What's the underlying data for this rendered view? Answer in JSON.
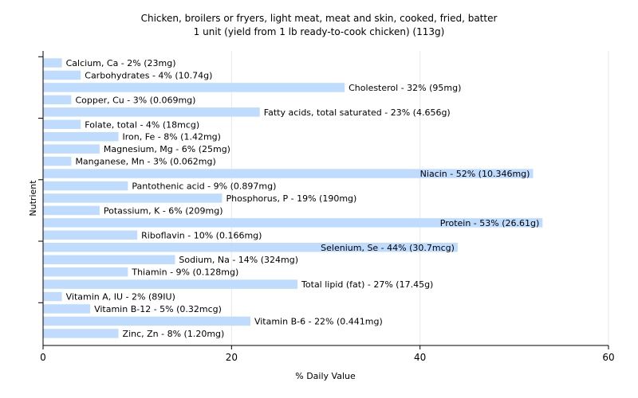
{
  "chart_data": {
    "type": "bar",
    "orientation": "horizontal",
    "title": "Chicken, broilers or fryers, light meat, meat and skin, cooked, fried, batter",
    "subtitle": "1 unit (yield from 1 lb ready-to-cook chicken) (113g)",
    "xlabel": "% Daily Value",
    "ylabel": "Nutrient",
    "xlim": [
      0,
      60
    ],
    "xticks": [
      0,
      20,
      40,
      60
    ],
    "grid": true,
    "bar_color": "#bfdcff",
    "categories": [
      "Calcium, Ca",
      "Carbohydrates",
      "Cholesterol",
      "Copper, Cu",
      "Fatty acids, total saturated",
      "Folate, total",
      "Iron, Fe",
      "Magnesium, Mg",
      "Manganese, Mn",
      "Niacin",
      "Pantothenic acid",
      "Phosphorus, P",
      "Potassium, K",
      "Protein",
      "Riboflavin",
      "Selenium, Se",
      "Sodium, Na",
      "Thiamin",
      "Total lipid (fat)",
      "Vitamin A, IU",
      "Vitamin B-12",
      "Vitamin B-6",
      "Zinc, Zn"
    ],
    "values": [
      2,
      4,
      32,
      3,
      23,
      4,
      8,
      6,
      3,
      52,
      9,
      19,
      6,
      53,
      10,
      44,
      14,
      9,
      27,
      2,
      5,
      22,
      8
    ],
    "labels": [
      "Calcium, Ca - 2% (23mg)",
      "Carbohydrates - 4% (10.74g)",
      "Cholesterol - 32% (95mg)",
      "Copper, Cu - 3% (0.069mg)",
      "Fatty acids, total saturated - 23% (4.656g)",
      "Folate, total - 4% (18mcg)",
      "Iron, Fe - 8% (1.42mg)",
      "Magnesium, Mg - 6% (25mg)",
      "Manganese, Mn - 3% (0.062mg)",
      "Niacin - 52% (10.346mg)",
      "Pantothenic acid - 9% (0.897mg)",
      "Phosphorus, P - 19% (190mg)",
      "Potassium, K - 6% (209mg)",
      "Protein - 53% (26.61g)",
      "Riboflavin - 10% (0.166mg)",
      "Selenium, Se - 44% (30.7mcg)",
      "Sodium, Na - 14% (324mg)",
      "Thiamin - 9% (0.128mg)",
      "Total lipid (fat) - 27% (17.45g)",
      "Vitamin A, IU - 2% (89IU)",
      "Vitamin B-12 - 5% (0.32mcg)",
      "Vitamin B-6 - 22% (0.441mg)",
      "Zinc, Zn - 8% (1.20mg)"
    ]
  }
}
